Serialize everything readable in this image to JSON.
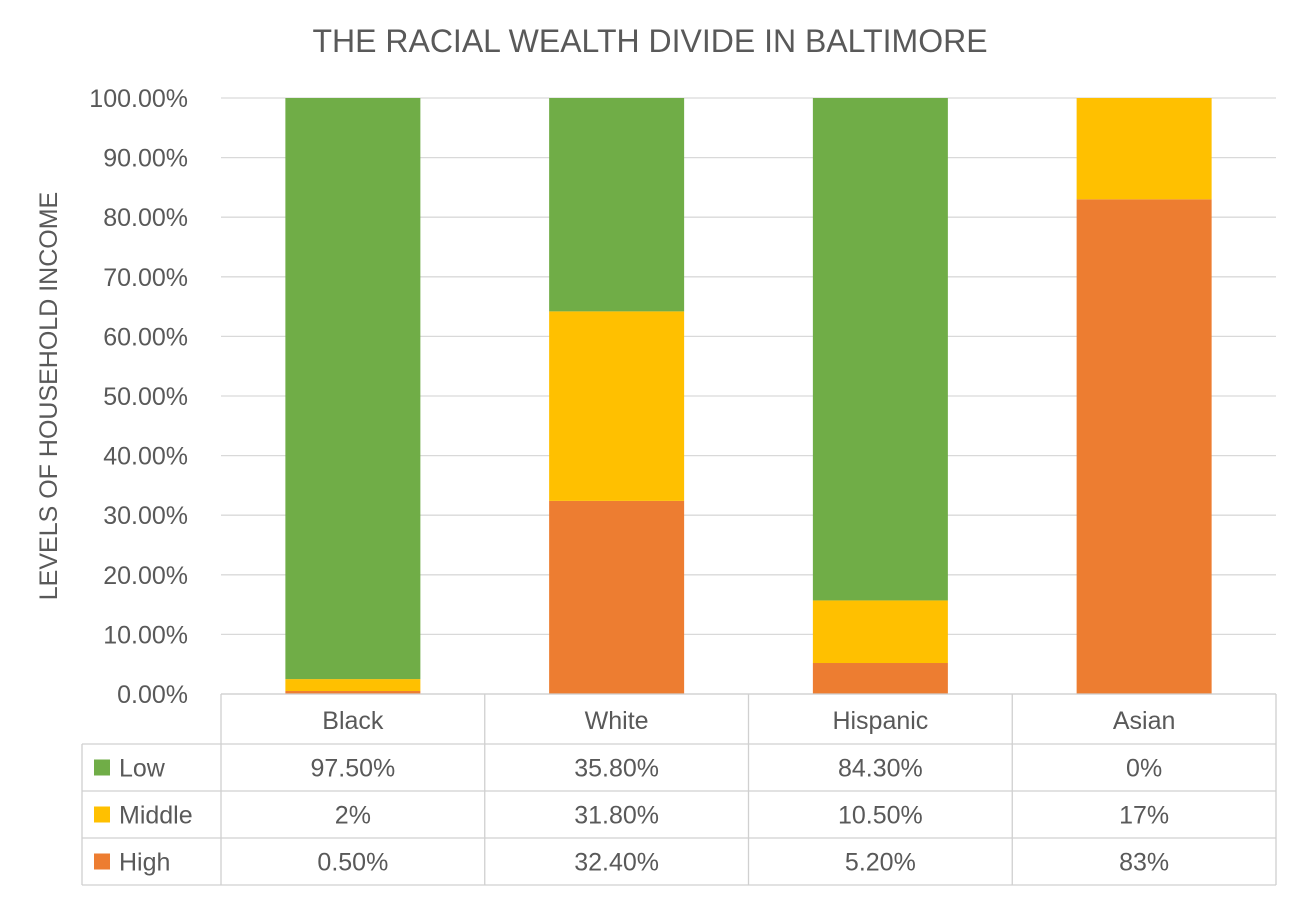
{
  "chart_data": {
    "type": "bar",
    "stacked": true,
    "title": "THE RACIAL WEALTH DIVIDE IN BALTIMORE",
    "xlabel": "",
    "ylabel": "LEVELS OF HOUSEHOLD INCOME",
    "ylim": [
      0,
      1
    ],
    "y_ticks": [
      "0.00%",
      "10.00%",
      "20.00%",
      "30.00%",
      "40.00%",
      "50.00%",
      "60.00%",
      "70.00%",
      "80.00%",
      "90.00%",
      "100.00%"
    ],
    "grid": true,
    "legend": "data-table",
    "categories": [
      "Black",
      "White",
      "Hispanic",
      "Asian"
    ],
    "series": [
      {
        "name": "High",
        "color": "#ED7D31",
        "values": [
          0.005,
          0.324,
          0.052,
          0.83
        ],
        "labels": [
          "0.50%",
          "32.40%",
          "5.20%",
          "83%"
        ]
      },
      {
        "name": "Middle",
        "color": "#FFC000",
        "values": [
          0.02,
          0.318,
          0.105,
          0.17
        ],
        "labels": [
          "2%",
          "31.80%",
          "10.50%",
          "17%"
        ]
      },
      {
        "name": "Low",
        "color": "#70AD47",
        "values": [
          0.975,
          0.358,
          0.843,
          0.0
        ],
        "labels": [
          "97.50%",
          "35.80%",
          "84.30%",
          "0%"
        ]
      }
    ],
    "table_row_order": [
      "Low",
      "Middle",
      "High"
    ]
  }
}
